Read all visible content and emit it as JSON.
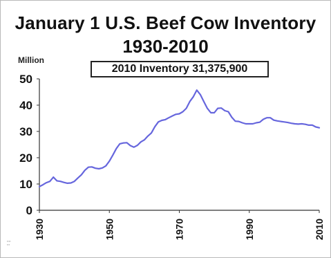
{
  "chart_data": {
    "type": "line",
    "title": "January 1 U.S. Beef Cow Inventory",
    "subtitle": "1930-2010",
    "ylabel": "Million",
    "annotation": "2010 Inventory 31,375,900",
    "ylim": [
      0,
      50
    ],
    "xlim": [
      1930,
      2010
    ],
    "yticks": [
      0,
      10,
      20,
      30,
      40,
      50
    ],
    "xticks": [
      1930,
      1950,
      1970,
      1990,
      2010
    ],
    "grid": false,
    "line_color": "#6666dd",
    "x": [
      1930,
      1931,
      1932,
      1933,
      1934,
      1935,
      1936,
      1937,
      1938,
      1939,
      1940,
      1941,
      1942,
      1943,
      1944,
      1945,
      1946,
      1947,
      1948,
      1949,
      1950,
      1951,
      1952,
      1953,
      1954,
      1955,
      1956,
      1957,
      1958,
      1959,
      1960,
      1961,
      1962,
      1963,
      1964,
      1965,
      1966,
      1967,
      1968,
      1969,
      1970,
      1971,
      1972,
      1973,
      1974,
      1975,
      1976,
      1977,
      1978,
      1979,
      1980,
      1981,
      1982,
      1983,
      1984,
      1985,
      1986,
      1987,
      1988,
      1989,
      1990,
      1991,
      1992,
      1993,
      1994,
      1995,
      1996,
      1997,
      1998,
      1999,
      2000,
      2001,
      2002,
      2003,
      2004,
      2005,
      2006,
      2007,
      2008,
      2009,
      2010
    ],
    "y": [
      9.0,
      9.7,
      10.5,
      11.0,
      12.6,
      11.2,
      11.0,
      10.6,
      10.3,
      10.4,
      11.0,
      12.3,
      13.5,
      15.2,
      16.4,
      16.5,
      16.0,
      15.8,
      16.1,
      16.9,
      18.7,
      21.0,
      23.5,
      25.3,
      25.6,
      25.7,
      24.6,
      24.0,
      24.7,
      26.0,
      26.8,
      28.2,
      29.4,
      31.8,
      33.6,
      34.2,
      34.5,
      35.2,
      35.9,
      36.5,
      36.7,
      37.5,
      38.8,
      41.4,
      43.2,
      45.7,
      44.0,
      41.4,
      38.8,
      37.1,
      37.1,
      38.8,
      38.9,
      37.9,
      37.5,
      35.4,
      33.9,
      33.8,
      33.3,
      32.9,
      32.9,
      32.9,
      33.3,
      33.5,
      34.6,
      35.2,
      35.2,
      34.3,
      34.0,
      33.8,
      33.6,
      33.4,
      33.1,
      32.9,
      32.8,
      32.9,
      32.7,
      32.4,
      32.4,
      31.7,
      31.4
    ]
  }
}
